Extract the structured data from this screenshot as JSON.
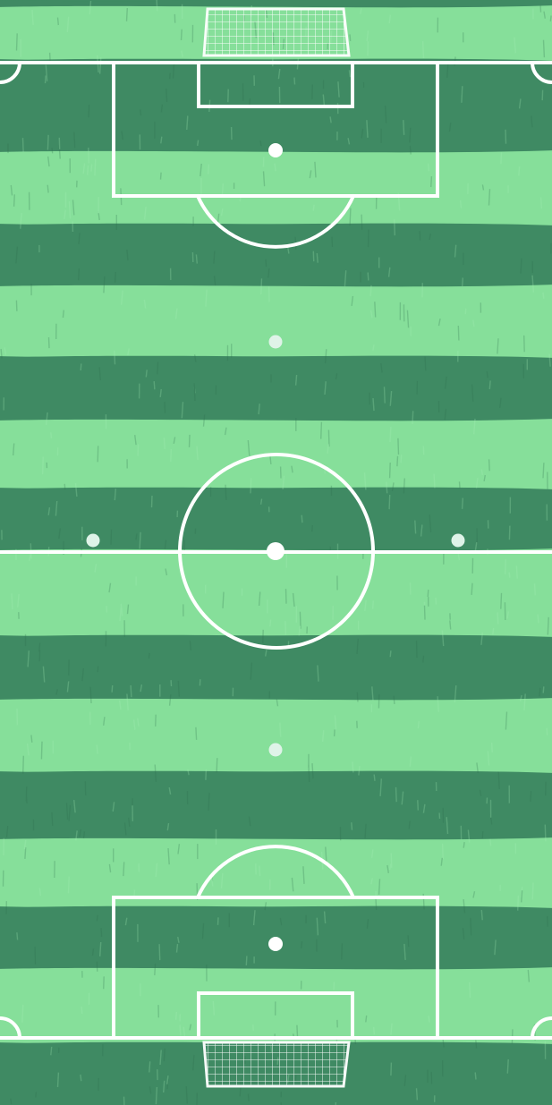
{
  "pitch": {
    "stripe_dark": "#3f8a63",
    "stripe_light": "#86df9a",
    "line_color": "#ffffff",
    "net_color": "#ffffff"
  },
  "markers": {
    "player_marker_color": "#dff3e8",
    "ball_color": "#ffffff"
  }
}
